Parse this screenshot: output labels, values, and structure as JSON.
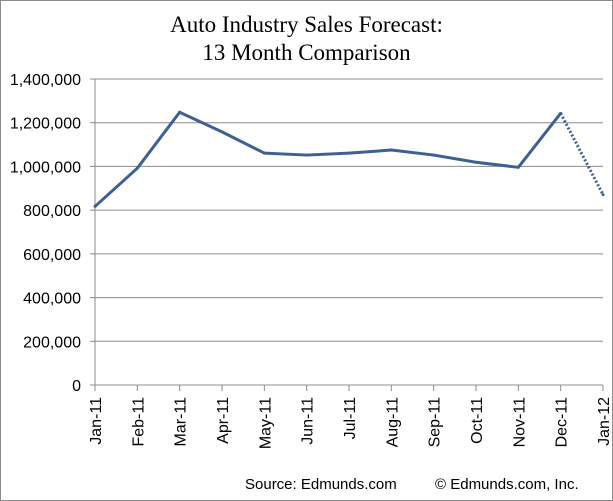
{
  "chart_data": {
    "type": "line",
    "title_lines": [
      "Auto Industry Sales Forecast:",
      "13 Month Comparison"
    ],
    "xlabel": "",
    "ylabel": "",
    "categories": [
      "Jan-11",
      "Feb-11",
      "Mar-11",
      "Apr-11",
      "May-11",
      "Jun-11",
      "Jul-11",
      "Aug-11",
      "Sep-11",
      "Oct-11",
      "Nov-11",
      "Dec-11",
      "Jan-12"
    ],
    "values": [
      817000,
      992000,
      1248000,
      1158000,
      1061000,
      1052000,
      1061000,
      1075000,
      1052000,
      1019000,
      996000,
      1243000,
      871000
    ],
    "forecast_segment_start_index": 11,
    "ylim": [
      0,
      1400000
    ],
    "yticks": [
      0,
      200000,
      400000,
      600000,
      800000,
      1000000,
      1200000,
      1400000
    ],
    "ytick_labels": [
      "0",
      "200,000",
      "400,000",
      "600,000",
      "800,000",
      "1,000,000",
      "1,200,000",
      "1,400,000"
    ],
    "grid": "horizontal",
    "legend": "none",
    "line_color": "#3e6193",
    "grid_color": "#8c8c8c"
  },
  "footer": {
    "source": "Source: Edmunds.com",
    "copyright": "© Edmunds.com, Inc."
  }
}
